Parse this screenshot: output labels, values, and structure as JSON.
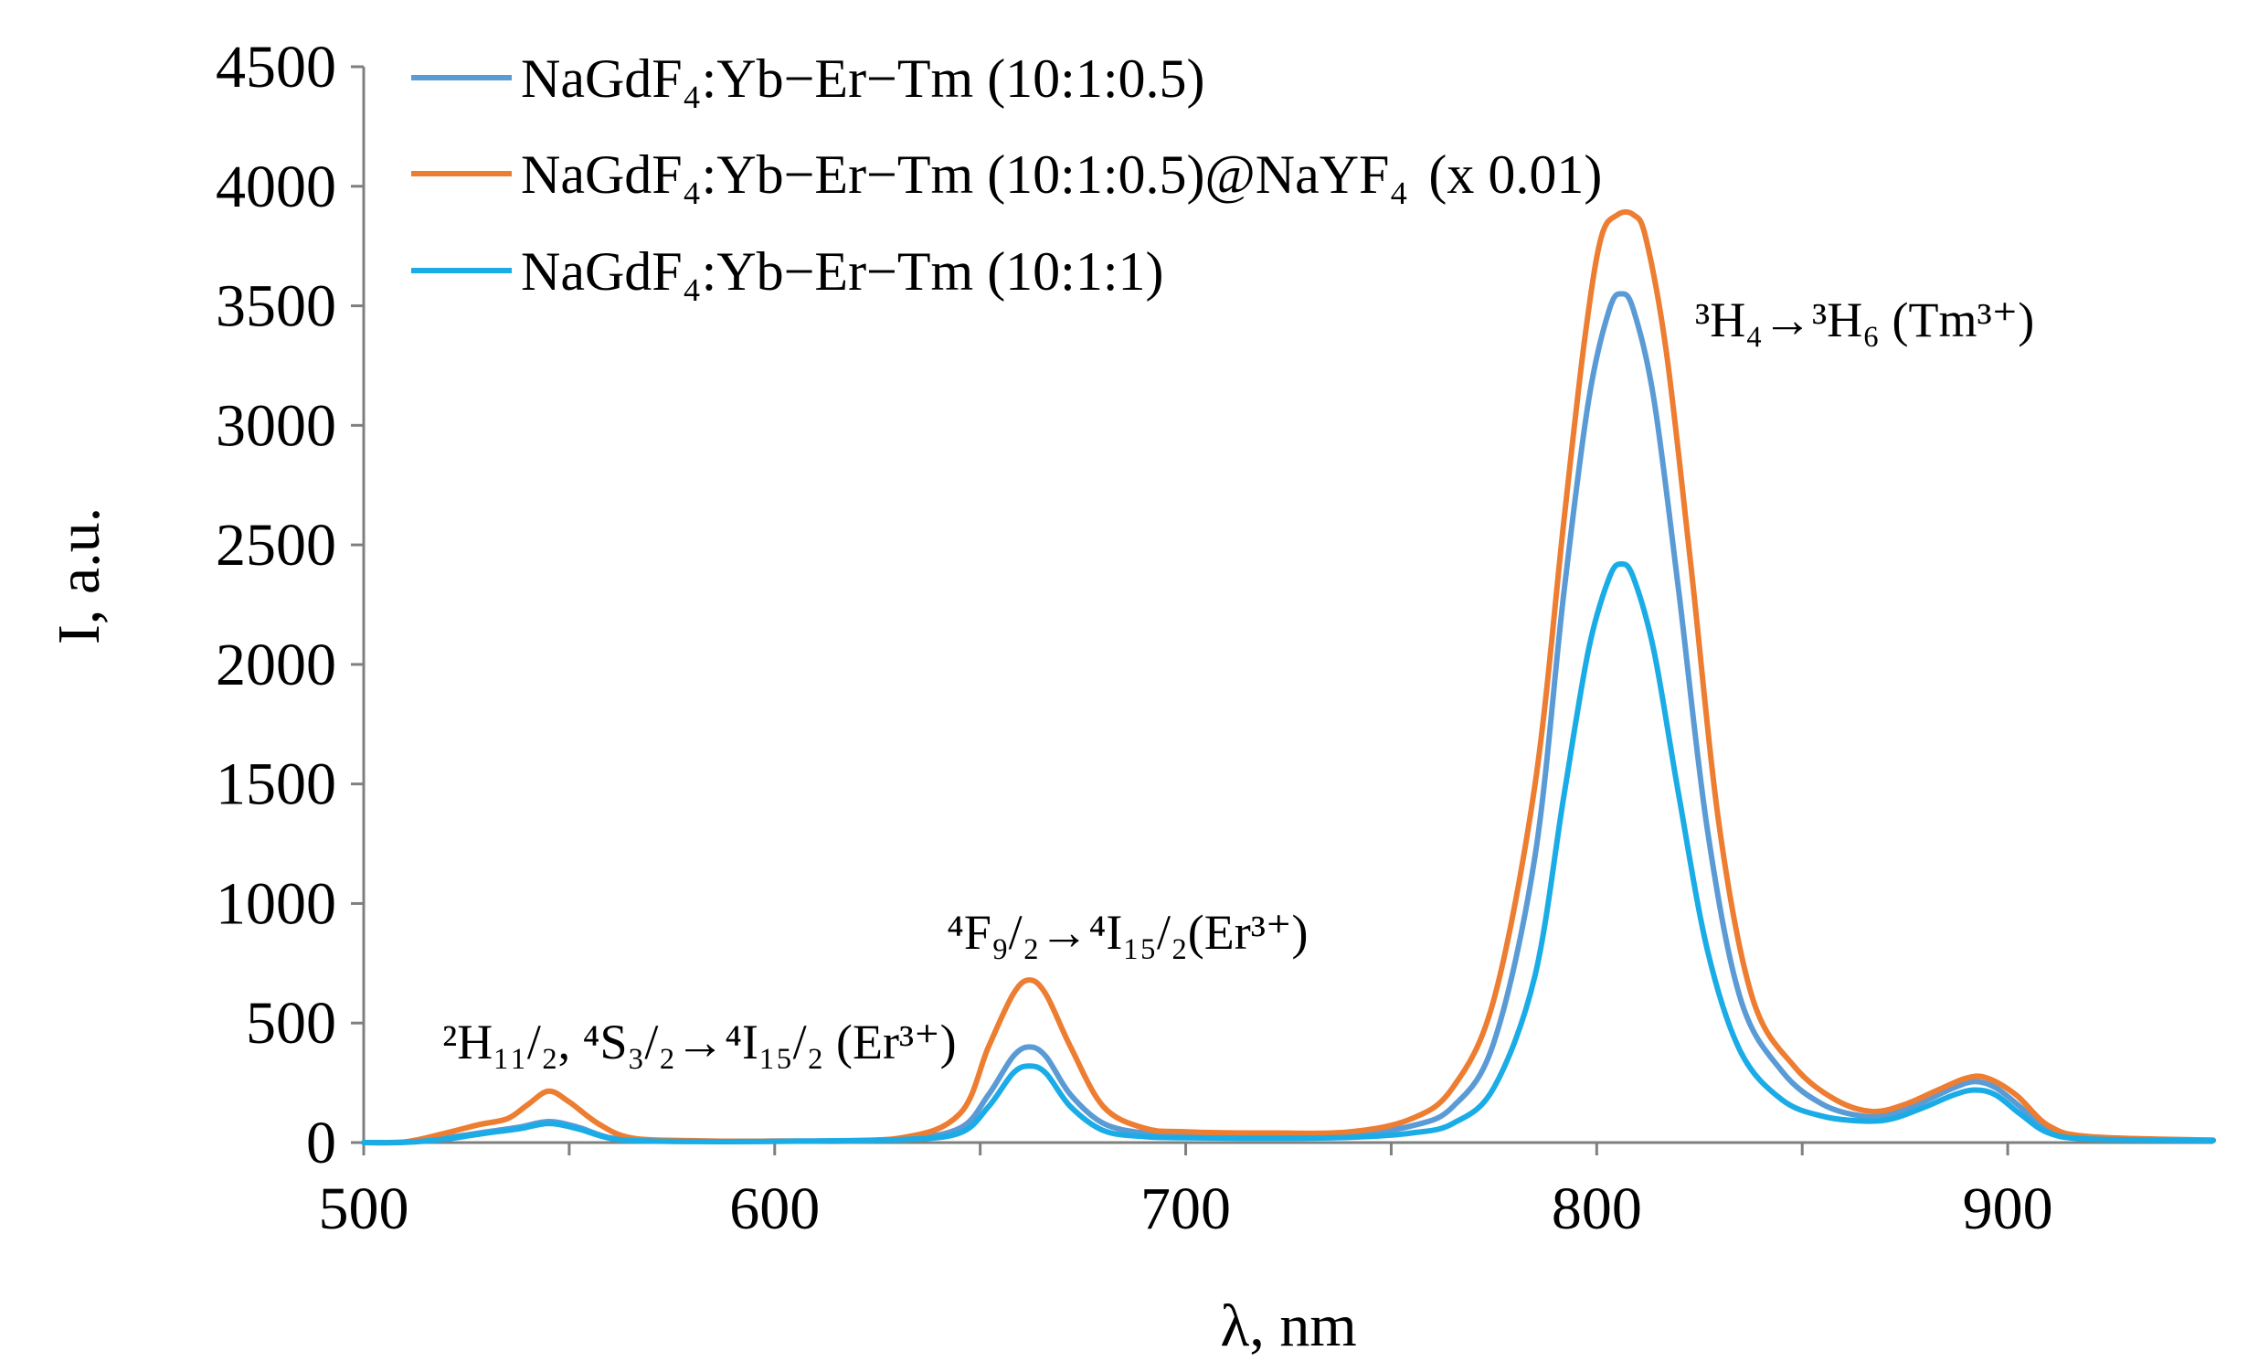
{
  "chart_data": {
    "type": "line",
    "xlabel": "λ, nm",
    "ylabel": "I, a.u.",
    "xlim": [
      500,
      950
    ],
    "ylim": [
      0,
      4500
    ],
    "x_ticks": [
      "500",
      "600",
      "700",
      "800",
      "900"
    ],
    "y_ticks": [
      "0",
      "500",
      "1000",
      "1500",
      "2000",
      "2500",
      "3000",
      "3500",
      "4000",
      "4500"
    ],
    "legend_position": "top-left",
    "grid": false,
    "series": [
      {
        "name": "NaGdF₄:Yb−Er−Tm (10:1:0.5)",
        "color": "#5B9BD5",
        "points": [
          [
            500,
            0
          ],
          [
            510,
            2
          ],
          [
            520,
            20
          ],
          [
            530,
            45
          ],
          [
            538,
            65
          ],
          [
            545,
            88
          ],
          [
            552,
            65
          ],
          [
            560,
            20
          ],
          [
            570,
            8
          ],
          [
            600,
            6
          ],
          [
            630,
            15
          ],
          [
            645,
            60
          ],
          [
            652,
            200
          ],
          [
            658,
            360
          ],
          [
            662,
            400
          ],
          [
            666,
            360
          ],
          [
            672,
            200
          ],
          [
            680,
            80
          ],
          [
            690,
            40
          ],
          [
            700,
            35
          ],
          [
            720,
            30
          ],
          [
            740,
            35
          ],
          [
            755,
            70
          ],
          [
            765,
            150
          ],
          [
            775,
            420
          ],
          [
            785,
            1200
          ],
          [
            792,
            2300
          ],
          [
            798,
            3100
          ],
          [
            803,
            3480
          ],
          [
            806,
            3550
          ],
          [
            809,
            3480
          ],
          [
            814,
            3100
          ],
          [
            820,
            2300
          ],
          [
            827,
            1300
          ],
          [
            835,
            600
          ],
          [
            845,
            300
          ],
          [
            855,
            160
          ],
          [
            865,
            110
          ],
          [
            872,
            120
          ],
          [
            880,
            175
          ],
          [
            887,
            230
          ],
          [
            892,
            255
          ],
          [
            897,
            230
          ],
          [
            903,
            150
          ],
          [
            910,
            50
          ],
          [
            920,
            20
          ],
          [
            950,
            10
          ]
        ]
      },
      {
        "name": "NaGdF₄:Yb−Er−Tm (10:1:0.5)@NaYF₄",
        "name_suffix": "(x 0.01)",
        "color": "#ED7D31",
        "points": [
          [
            500,
            0
          ],
          [
            510,
            3
          ],
          [
            520,
            40
          ],
          [
            528,
            75
          ],
          [
            535,
            100
          ],
          [
            540,
            160
          ],
          [
            545,
            215
          ],
          [
            550,
            170
          ],
          [
            557,
            80
          ],
          [
            565,
            20
          ],
          [
            580,
            8
          ],
          [
            600,
            6
          ],
          [
            630,
            18
          ],
          [
            645,
            120
          ],
          [
            652,
            400
          ],
          [
            658,
            620
          ],
          [
            662,
            680
          ],
          [
            666,
            620
          ],
          [
            672,
            400
          ],
          [
            680,
            150
          ],
          [
            690,
            60
          ],
          [
            700,
            45
          ],
          [
            720,
            40
          ],
          [
            740,
            45
          ],
          [
            755,
            100
          ],
          [
            765,
            230
          ],
          [
            775,
            600
          ],
          [
            785,
            1500
          ],
          [
            792,
            2600
          ],
          [
            797,
            3350
          ],
          [
            801,
            3780
          ],
          [
            805,
            3880
          ],
          [
            809,
            3880
          ],
          [
            812,
            3780
          ],
          [
            817,
            3300
          ],
          [
            823,
            2400
          ],
          [
            830,
            1300
          ],
          [
            838,
            600
          ],
          [
            848,
            320
          ],
          [
            858,
            180
          ],
          [
            867,
            130
          ],
          [
            875,
            160
          ],
          [
            883,
            220
          ],
          [
            890,
            270
          ],
          [
            895,
            270
          ],
          [
            902,
            200
          ],
          [
            910,
            70
          ],
          [
            920,
            25
          ],
          [
            950,
            10
          ]
        ]
      },
      {
        "name": "NaGdF₄:Yb−Er−Tm (10:1:1)",
        "color": "#1AACE6",
        "points": [
          [
            500,
            0
          ],
          [
            510,
            1
          ],
          [
            520,
            15
          ],
          [
            530,
            40
          ],
          [
            538,
            58
          ],
          [
            545,
            80
          ],
          [
            552,
            58
          ],
          [
            560,
            18
          ],
          [
            570,
            6
          ],
          [
            600,
            5
          ],
          [
            630,
            12
          ],
          [
            645,
            40
          ],
          [
            652,
            150
          ],
          [
            658,
            290
          ],
          [
            662,
            320
          ],
          [
            666,
            290
          ],
          [
            672,
            150
          ],
          [
            680,
            50
          ],
          [
            690,
            25
          ],
          [
            700,
            20
          ],
          [
            720,
            18
          ],
          [
            740,
            22
          ],
          [
            755,
            40
          ],
          [
            765,
            80
          ],
          [
            775,
            230
          ],
          [
            785,
            700
          ],
          [
            792,
            1450
          ],
          [
            798,
            2060
          ],
          [
            803,
            2360
          ],
          [
            806,
            2420
          ],
          [
            809,
            2360
          ],
          [
            814,
            2050
          ],
          [
            820,
            1450
          ],
          [
            827,
            800
          ],
          [
            835,
            380
          ],
          [
            845,
            180
          ],
          [
            855,
            110
          ],
          [
            865,
            90
          ],
          [
            872,
            100
          ],
          [
            880,
            150
          ],
          [
            887,
            200
          ],
          [
            892,
            220
          ],
          [
            897,
            200
          ],
          [
            903,
            120
          ],
          [
            910,
            40
          ],
          [
            920,
            15
          ],
          [
            950,
            8
          ]
        ]
      }
    ],
    "annotations": [
      {
        "text": "³H₄→³H₆ (Tm³⁺)"
      },
      {
        "text": "⁴F₉/₂→⁴I₁₅/₂(Er³⁺)"
      },
      {
        "text": "²H₁₁/₂, ⁴S₃/₂→⁴I₁₅/₂ (Er³⁺)"
      }
    ]
  }
}
